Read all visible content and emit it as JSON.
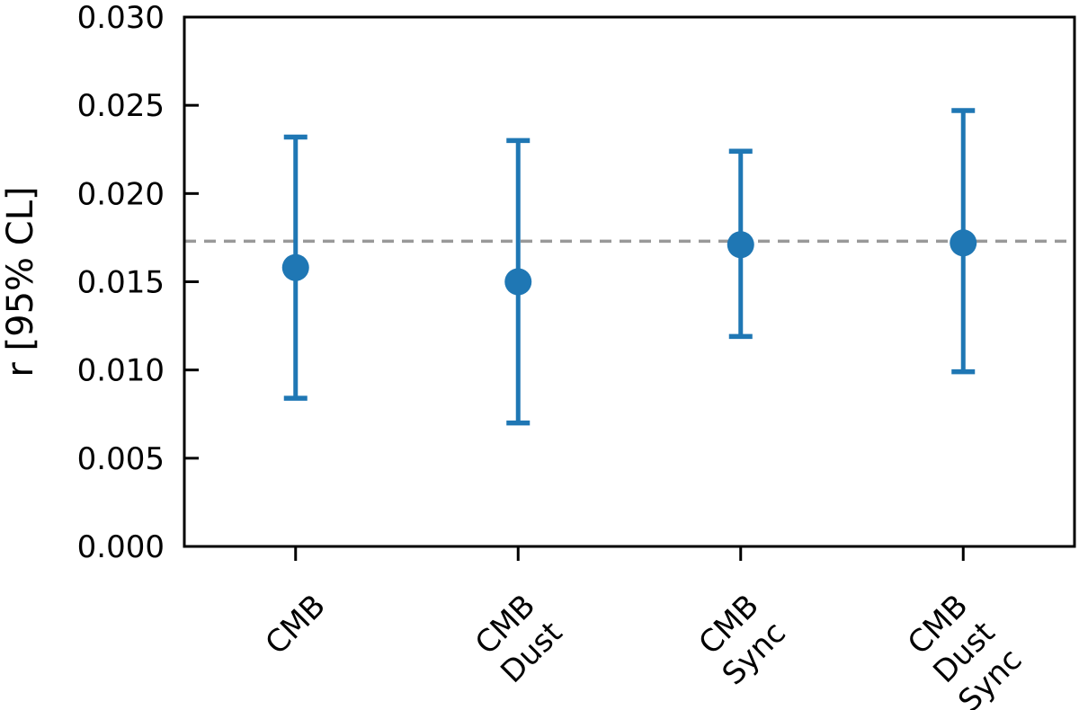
{
  "figure": {
    "background": "#ffffff"
  },
  "chart_data": {
    "type": "errorbar",
    "title": "",
    "xlabel": "",
    "ylabel": "r [95% CL]",
    "ylim": [
      0.0,
      0.03
    ],
    "grid": false,
    "legend": null,
    "axis_color": "#000000",
    "yticks": [
      {
        "value": 0.0,
        "label": "0.000"
      },
      {
        "value": 0.005,
        "label": "0.005"
      },
      {
        "value": 0.01,
        "label": "0.010"
      },
      {
        "value": 0.015,
        "label": "0.015"
      },
      {
        "value": 0.02,
        "label": "0.020"
      },
      {
        "value": 0.025,
        "label": "0.025"
      },
      {
        "value": 0.03,
        "label": "0.030"
      }
    ],
    "categories": [
      {
        "lines": [
          "CMB"
        ]
      },
      {
        "lines": [
          "CMB",
          "Dust"
        ]
      },
      {
        "lines": [
          "CMB",
          "Sync"
        ]
      },
      {
        "lines": [
          "CMB",
          "Dust",
          "Sync"
        ]
      }
    ],
    "series": [
      {
        "color": "#1f77b4",
        "marker": "circle",
        "points": [
          {
            "category": "CMB",
            "center": 0.0158,
            "upper": 0.0232,
            "lower": 0.0084
          },
          {
            "category": "CMB Dust",
            "center": 0.015,
            "upper": 0.023,
            "lower": 0.007
          },
          {
            "category": "CMB Sync",
            "center": 0.0171,
            "upper": 0.0224,
            "lower": 0.0119
          },
          {
            "category": "CMB Dust Sync",
            "center": 0.0172,
            "upper": 0.0247,
            "lower": 0.0099
          }
        ]
      }
    ],
    "reference_line": {
      "value": 0.0173,
      "style": "dashed",
      "color": "#999999"
    }
  }
}
